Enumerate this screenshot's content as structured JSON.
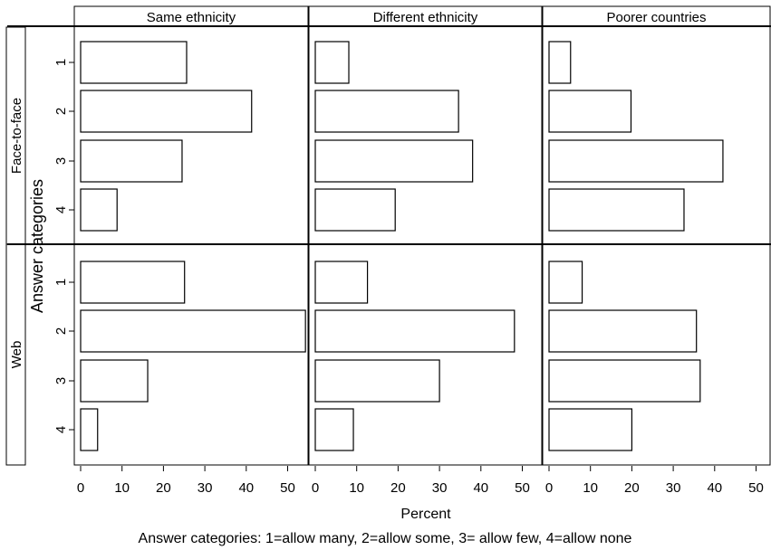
{
  "chart_data": {
    "type": "bar",
    "orientation": "horizontal",
    "layout": "trellis 2 rows x 3 columns",
    "columns": [
      "Same ethnicity",
      "Different ethnicity",
      "Poorer countries"
    ],
    "rows": [
      "Face-to-face",
      "Web"
    ],
    "categories": [
      "1",
      "2",
      "3",
      "4"
    ],
    "xlabel": "Percent",
    "ylabel": "Answer categories",
    "xlim": [
      0,
      55
    ],
    "xticks": [
      0,
      10,
      20,
      30,
      40,
      50
    ],
    "note": "Answer categories: 1=allow many, 2=allow some, 3= allow few, 4=allow none",
    "panels": [
      {
        "row": "Face-to-face",
        "column": "Same ethnicity",
        "values": [
          25.6,
          41.3,
          24.5,
          8.8
        ]
      },
      {
        "row": "Face-to-face",
        "column": "Different ethnicity",
        "values": [
          8.1,
          34.6,
          38.0,
          19.3
        ]
      },
      {
        "row": "Face-to-face",
        "column": "Poorer countries",
        "values": [
          5.2,
          19.8,
          42.0,
          32.6
        ]
      },
      {
        "row": "Web",
        "column": "Same ethnicity",
        "values": [
          25.1,
          54.3,
          16.2,
          4.1
        ]
      },
      {
        "row": "Web",
        "column": "Different ethnicity",
        "values": [
          12.6,
          48.1,
          30.0,
          9.2
        ]
      },
      {
        "row": "Web",
        "column": "Poorer countries",
        "values": [
          8.0,
          35.6,
          36.5,
          20.0
        ]
      }
    ]
  }
}
